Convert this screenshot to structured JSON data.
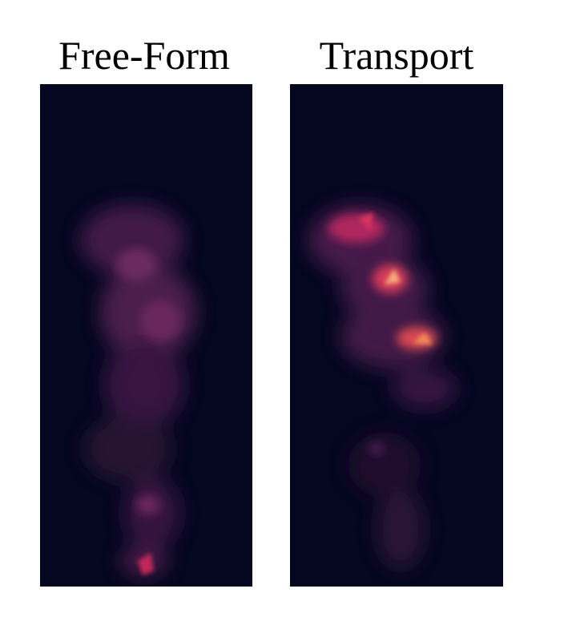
{
  "panels": [
    {
      "title": "Free-Form"
    },
    {
      "title": "Transport"
    }
  ]
}
